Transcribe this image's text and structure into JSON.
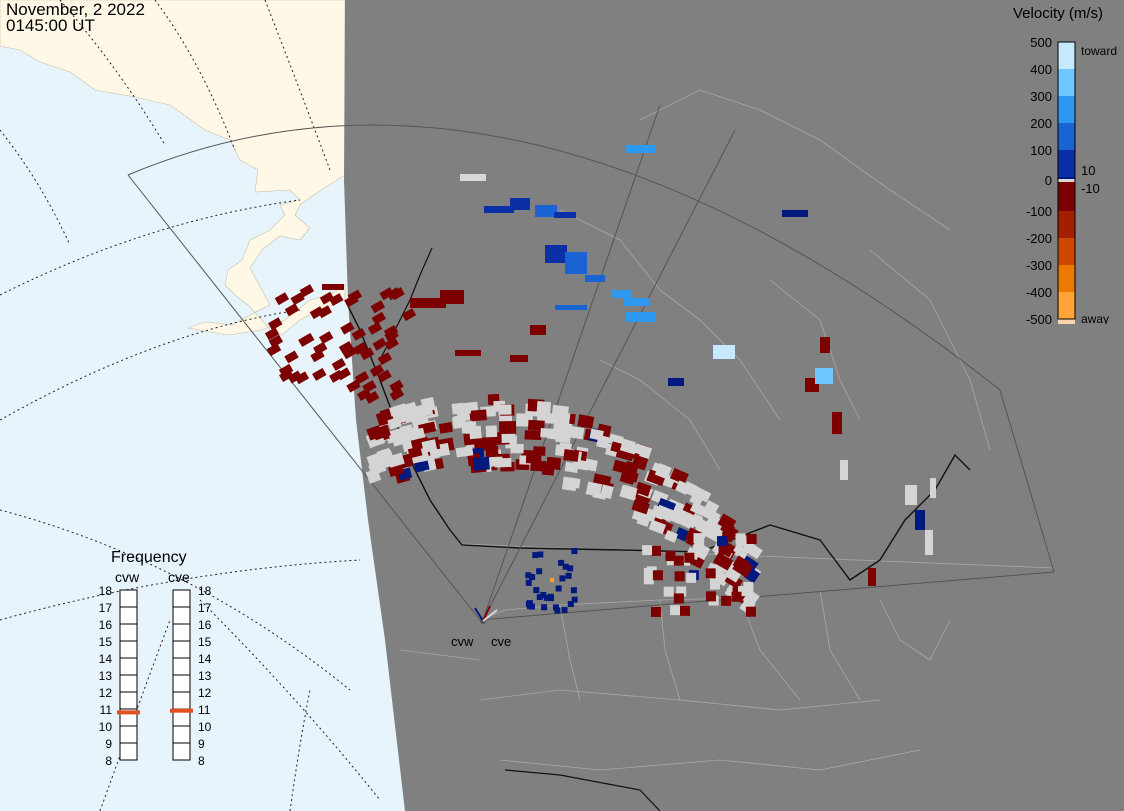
{
  "header": {
    "date": "November, 2 2022",
    "time": "0145:00 UT"
  },
  "legend": {
    "title": "Velocity (m/s)",
    "ticks": [
      "500",
      "400",
      "300",
      "200",
      "100",
      "10",
      "0",
      "-10",
      "-100",
      "-200",
      "-300",
      "-400",
      "-500"
    ],
    "toward_label": "toward",
    "away_label": "away",
    "colors": [
      "#c6e9ff",
      "#6ec8ff",
      "#2d99f0",
      "#1a63d2",
      "#0a2fa6",
      "#00197e",
      "#d8d8d8",
      "#7c0000",
      "#a21f00",
      "#cc4800",
      "#ec7a00",
      "#ffa53a",
      "#ffd3ab"
    ]
  },
  "frequency": {
    "title": "Frequency",
    "radars": [
      {
        "name": "cvw",
        "value_mhz": 10.8
      },
      {
        "name": "cve",
        "value_mhz": 10.9
      }
    ],
    "scale": [
      "18",
      "17",
      "16",
      "15",
      "14",
      "13",
      "12",
      "11",
      "10",
      "9",
      "8"
    ],
    "marker_color": "#e05020"
  },
  "stations": [
    {
      "name": "cvw"
    },
    {
      "name": "cve"
    }
  ],
  "colors": {
    "ocean": "#e8f4fc",
    "land_lit": "#fff8e6",
    "night": "#808080",
    "boundaries": "#a8a8a8",
    "fov": "#555555",
    "ground_scatter": "#d4d4d4"
  }
}
